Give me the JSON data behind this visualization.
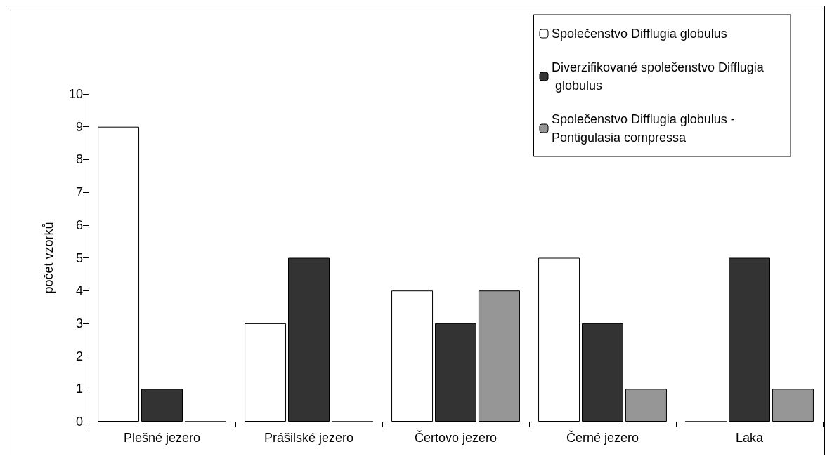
{
  "chart_data": {
    "type": "bar",
    "ylabel": "počet vzorků",
    "categories": [
      "Plešné jezero",
      "Prášilské jezero",
      "Čertovo jezero",
      "Černé jezero",
      "Laka"
    ],
    "series": [
      {
        "name": "Společenstvo Difflugia globulus",
        "color": "#ffffff",
        "values": [
          9,
          3,
          4,
          5,
          0
        ]
      },
      {
        "name": "Diverzifikované společenstvo Difflugia globulus",
        "color": "#333333",
        "values": [
          1,
          5,
          3,
          3,
          5
        ]
      },
      {
        "name": "Společenstvo Difflugia globulus - Pontigulasia compressa",
        "color": "#969696",
        "values": [
          0,
          0,
          4,
          1,
          1
        ]
      }
    ],
    "ylim": [
      0,
      10
    ],
    "yticks": [
      0,
      1,
      2,
      3,
      4,
      5,
      6,
      7,
      8,
      9,
      10
    ],
    "grid": false,
    "legend": "top right"
  }
}
